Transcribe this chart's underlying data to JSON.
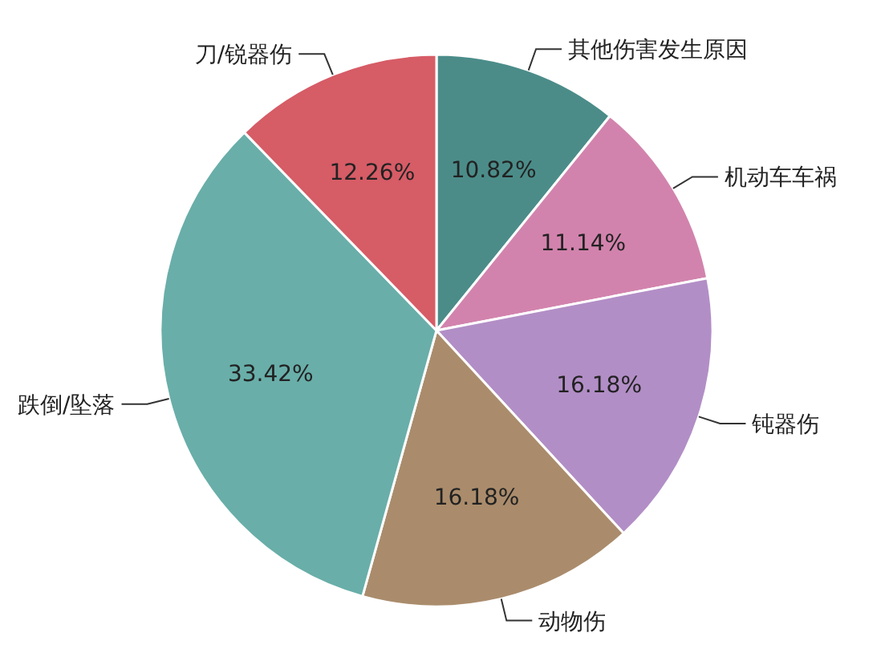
{
  "chart_data": {
    "type": "pie",
    "categories": [
      "其他伤害发生原因",
      "机动车车祸",
      "钝器伤",
      "动物伤",
      "跌倒/坠落",
      "刀/锐器伤"
    ],
    "values": [
      10.82,
      11.14,
      16.18,
      16.18,
      33.42,
      12.26
    ],
    "value_labels": [
      "10.82%",
      "11.14%",
      "16.18%",
      "16.18%",
      "33.42%",
      "12.26%"
    ],
    "colors": [
      "#4b8c89",
      "#d283ad",
      "#b28ec6",
      "#aa8c6c",
      "#69aea9",
      "#d65c66"
    ]
  }
}
